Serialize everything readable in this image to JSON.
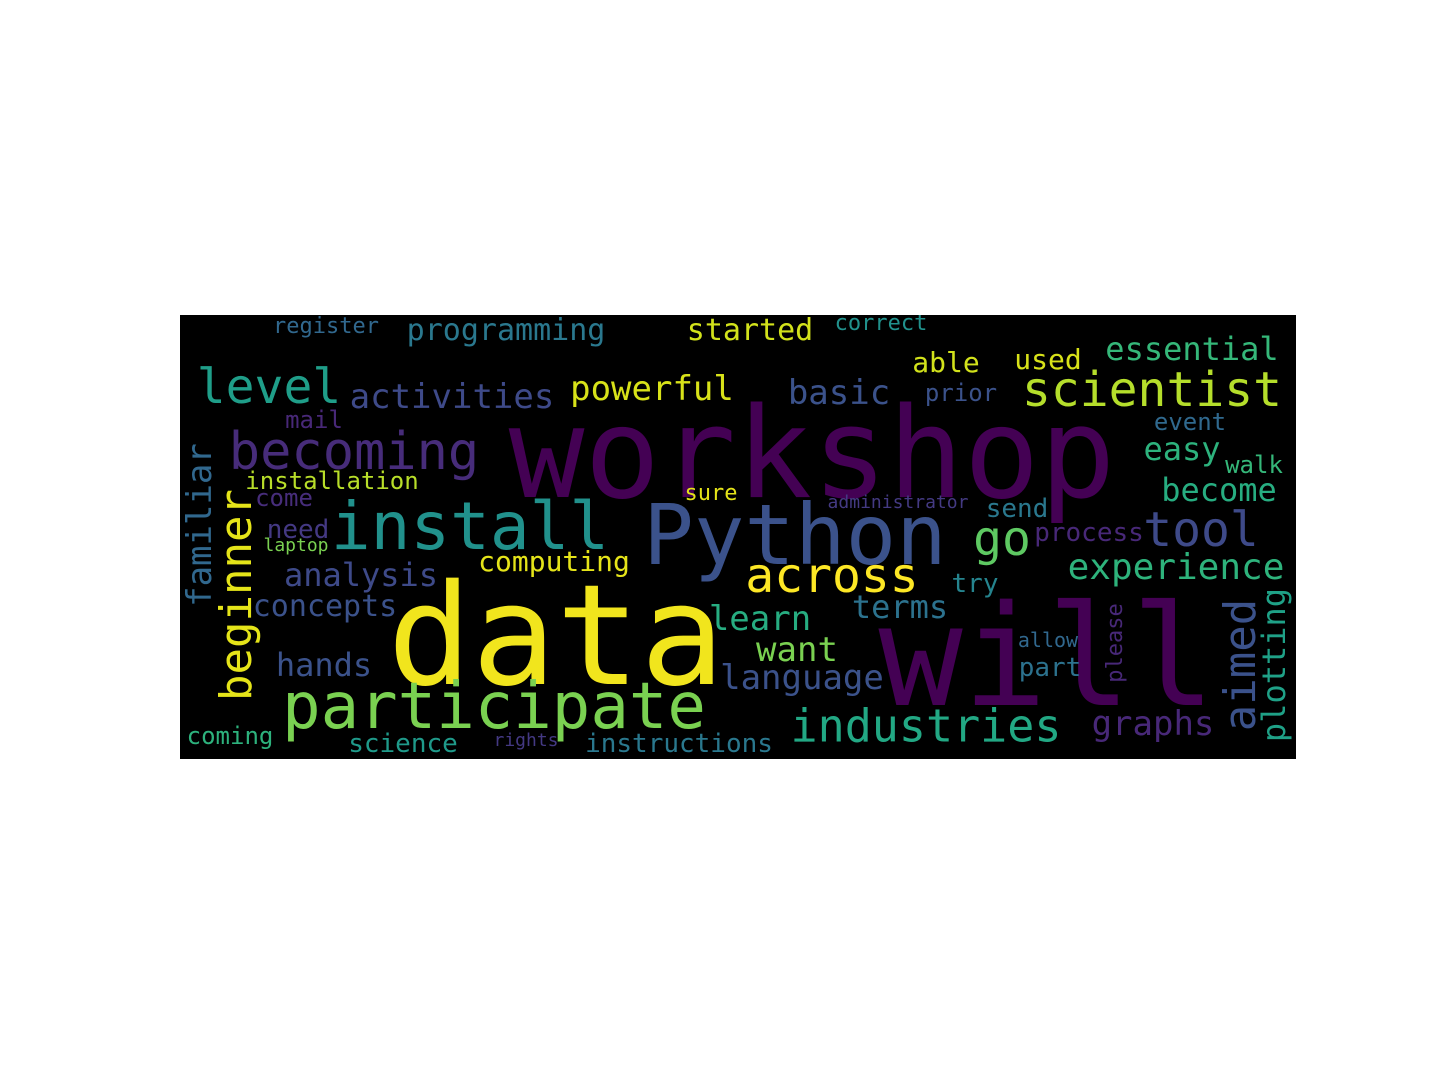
{
  "word_cloud": {
    "background": "#000000",
    "words": [
      {
        "text": "workshop",
        "color": "#440154",
        "vertical": false
      },
      {
        "text": "data",
        "color": "#f1e51d",
        "vertical": false
      },
      {
        "text": "will",
        "color": "#440154",
        "vertical": false
      },
      {
        "text": "Python",
        "color": "#3b528b",
        "vertical": false
      },
      {
        "text": "install",
        "color": "#21918c",
        "vertical": false
      },
      {
        "text": "participate",
        "color": "#7ad151",
        "vertical": false
      },
      {
        "text": "industries",
        "color": "#22a884",
        "vertical": false
      },
      {
        "text": "across",
        "color": "#fde725",
        "vertical": false
      },
      {
        "text": "scientist",
        "color": "#b5de2b",
        "vertical": false
      },
      {
        "text": "becoming",
        "color": "#472c7a",
        "vertical": false
      },
      {
        "text": "level",
        "color": "#1f9e89",
        "vertical": false
      },
      {
        "text": "tool",
        "color": "#3e4a89",
        "vertical": false
      },
      {
        "text": "go",
        "color": "#5ec962",
        "vertical": false
      },
      {
        "text": "beginner",
        "color": "#e5e419",
        "vertical": true
      },
      {
        "text": "aimed",
        "color": "#3b528b",
        "vertical": true
      },
      {
        "text": "familiar",
        "color": "#31688e",
        "vertical": true
      },
      {
        "text": "plotting",
        "color": "#1fa187",
        "vertical": true
      },
      {
        "text": "please",
        "color": "#482878",
        "vertical": true
      },
      {
        "text": "programming",
        "color": "#2a788e",
        "vertical": false
      },
      {
        "text": "started",
        "color": "#d2e21b",
        "vertical": false
      },
      {
        "text": "register",
        "color": "#31688e",
        "vertical": false
      },
      {
        "text": "correct",
        "color": "#21918c",
        "vertical": false
      },
      {
        "text": "essential",
        "color": "#35b779",
        "vertical": false
      },
      {
        "text": "able",
        "color": "#d2e21b",
        "vertical": false
      },
      {
        "text": "used",
        "color": "#d8e219",
        "vertical": false
      },
      {
        "text": "activities",
        "color": "#3e4a89",
        "vertical": false
      },
      {
        "text": "powerful",
        "color": "#d8e219",
        "vertical": false
      },
      {
        "text": "basic",
        "color": "#3b528b",
        "vertical": false
      },
      {
        "text": "prior",
        "color": "#3b528b",
        "vertical": false
      },
      {
        "text": "mail",
        "color": "#482878",
        "vertical": false
      },
      {
        "text": "event",
        "color": "#30698e",
        "vertical": false
      },
      {
        "text": "easy",
        "color": "#2db27d",
        "vertical": false
      },
      {
        "text": "walk",
        "color": "#35b779",
        "vertical": false
      },
      {
        "text": "installation",
        "color": "#b8de29",
        "vertical": false
      },
      {
        "text": "come",
        "color": "#472d7b",
        "vertical": false
      },
      {
        "text": "sure",
        "color": "#e5e419",
        "vertical": false
      },
      {
        "text": "administrator",
        "color": "#443a83",
        "vertical": false
      },
      {
        "text": "send",
        "color": "#2a788e",
        "vertical": false
      },
      {
        "text": "become",
        "color": "#27ad81",
        "vertical": false
      },
      {
        "text": "need",
        "color": "#443983",
        "vertical": false
      },
      {
        "text": "laptop",
        "color": "#7ad151",
        "vertical": false
      },
      {
        "text": "process",
        "color": "#482878",
        "vertical": false
      },
      {
        "text": "computing",
        "color": "#e5e419",
        "vertical": false
      },
      {
        "text": "experience",
        "color": "#2eb37c",
        "vertical": false
      },
      {
        "text": "analysis",
        "color": "#3e4a89",
        "vertical": false
      },
      {
        "text": "try",
        "color": "#25848e",
        "vertical": false
      },
      {
        "text": "concepts",
        "color": "#3b528b",
        "vertical": false
      },
      {
        "text": "terms",
        "color": "#2c728e",
        "vertical": false
      },
      {
        "text": "learn",
        "color": "#27ad81",
        "vertical": false
      },
      {
        "text": "allow",
        "color": "#31688e",
        "vertical": false
      },
      {
        "text": "want",
        "color": "#7ad151",
        "vertical": false
      },
      {
        "text": "hands",
        "color": "#3b528b",
        "vertical": false
      },
      {
        "text": "language",
        "color": "#3b528b",
        "vertical": false
      },
      {
        "text": "part",
        "color": "#2c728e",
        "vertical": false
      },
      {
        "text": "graphs",
        "color": "#482878",
        "vertical": false
      },
      {
        "text": "coming",
        "color": "#2db27d",
        "vertical": false
      },
      {
        "text": "science",
        "color": "#1f9a8a",
        "vertical": false
      },
      {
        "text": "rights",
        "color": "#443983",
        "vertical": false
      },
      {
        "text": "instructions",
        "color": "#2a788e",
        "vertical": false
      }
    ]
  }
}
